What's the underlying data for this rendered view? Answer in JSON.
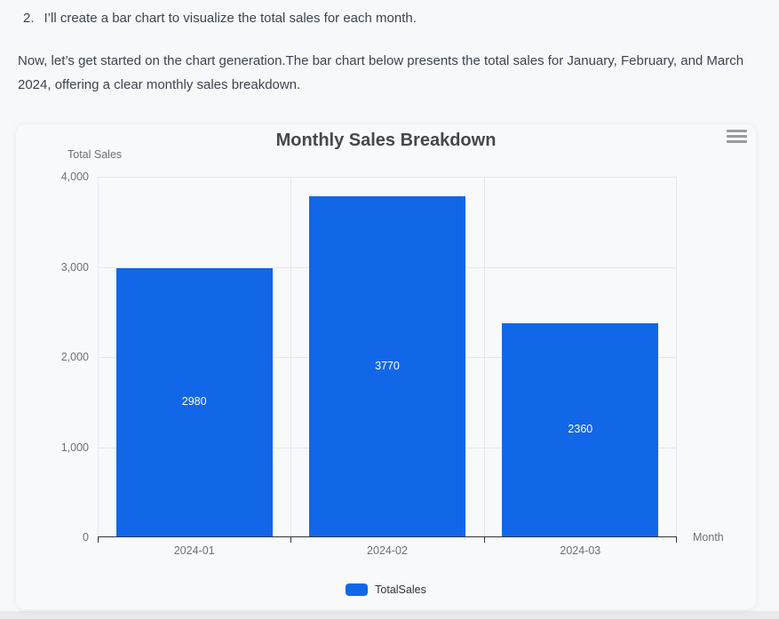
{
  "intro": {
    "list_item_number": "2.",
    "list_item_text": "I’ll create a bar chart to visualize the total sales for each month.",
    "paragraph": "Now, let’s get started on the chart generation.The bar chart below presents the total sales for January, February, and March 2024, offering a clear monthly sales breakdown."
  },
  "chart_data": {
    "type": "bar",
    "title": "Monthly Sales Breakdown",
    "categories": [
      "2024-01",
      "2024-02",
      "2024-03"
    ],
    "series": [
      {
        "name": "TotalSales",
        "values": [
          2980,
          3770,
          2360
        ]
      }
    ],
    "bar_labels": [
      "2980",
      "3770",
      "2360"
    ],
    "xlabel": "Month",
    "ylabel": "Total Sales",
    "ylim": [
      0,
      4000
    ],
    "yticks": [
      0,
      1000,
      2000,
      3000,
      4000
    ],
    "ytick_labels": [
      "0",
      "1,000",
      "2,000",
      "3,000",
      "4,000"
    ],
    "grid": true,
    "legend_position": "bottom",
    "colors": {
      "bar": "#1266e8",
      "bar_label": "#ffffff",
      "gridline": "#e3e8f2",
      "axis_line": "#32343a",
      "axis_text": "#6e7079"
    }
  },
  "chart_ui": {
    "menu_icon": "hamburger-icon"
  }
}
